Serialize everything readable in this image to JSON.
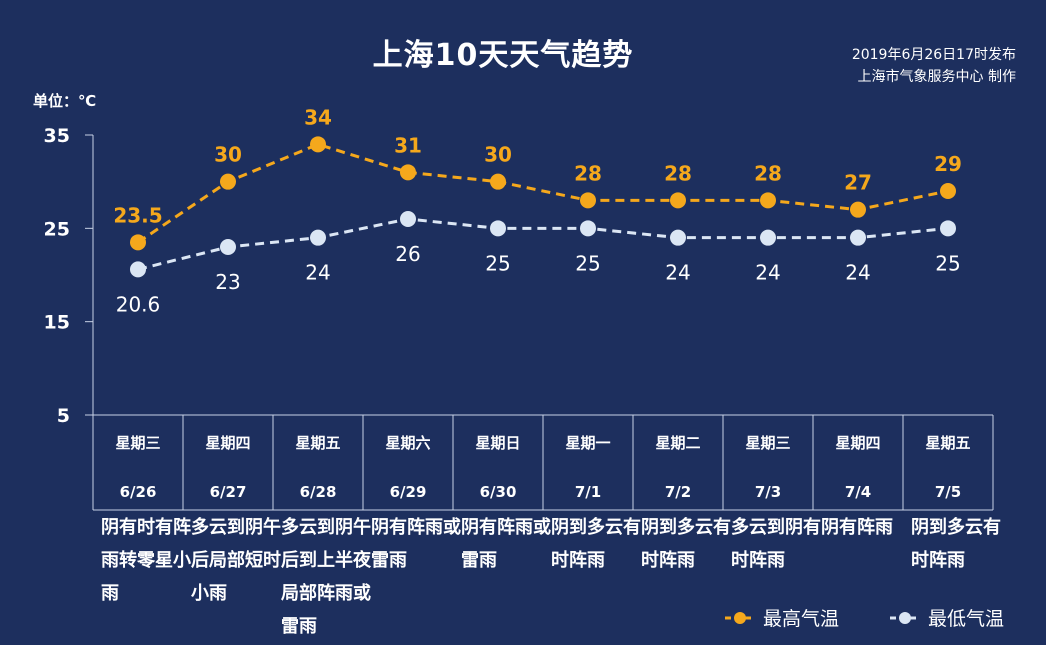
{
  "header": {
    "title": "上海10天天气趋势",
    "issued_time": "2019年6月26日17时发布",
    "issuer": "上海市气象服务中心  制作",
    "unit": "单位：℃"
  },
  "colors": {
    "background": "#1d2f5e",
    "high": "#f5a81c",
    "low": "#dbe6f4",
    "grid": "#c8d2e6"
  },
  "chart_data": {
    "type": "line",
    "title": "上海10天天气趋势",
    "ylabel": "单位：℃",
    "ylim": [
      5,
      35
    ],
    "yticks": [
      35,
      25,
      15,
      5
    ],
    "categories": [
      {
        "weekday": "星期三",
        "date": "6/26"
      },
      {
        "weekday": "星期四",
        "date": "6/27"
      },
      {
        "weekday": "星期五",
        "date": "6/28"
      },
      {
        "weekday": "星期六",
        "date": "6/29"
      },
      {
        "weekday": "星期日",
        "date": "6/30"
      },
      {
        "weekday": "星期一",
        "date": "7/1"
      },
      {
        "weekday": "星期二",
        "date": "7/2"
      },
      {
        "weekday": "星期三",
        "date": "7/3"
      },
      {
        "weekday": "星期四",
        "date": "7/4"
      },
      {
        "weekday": "星期五",
        "date": "7/5"
      }
    ],
    "series": [
      {
        "name": "最高气温",
        "labels": [
          "23.5",
          "30",
          "34",
          "31",
          "30",
          "28",
          "28",
          "28",
          "27",
          "29"
        ],
        "values": [
          23.5,
          30,
          34,
          31,
          30,
          28,
          28,
          28,
          27,
          29
        ]
      },
      {
        "name": "最低气温",
        "labels": [
          "20.6",
          "23",
          "24",
          "26",
          "25",
          "25",
          "24",
          "24",
          "24",
          "25"
        ],
        "values": [
          20.6,
          23,
          24,
          26,
          25,
          25,
          24,
          24,
          24,
          25
        ]
      }
    ]
  },
  "descriptions": [
    "阴有时有阵雨转零星小雨",
    "多云到阴午后局部短时小雨",
    "多云到阴午后到上半夜局部阵雨或雷雨",
    "阴有阵雨或雷雨",
    "阴有阵雨或雷雨",
    "阴到多云有时阵雨",
    "阴到多云有时阵雨",
    "多云到阴有时阵雨",
    "阴有阵雨",
    "阴到多云有时阵雨"
  ],
  "legend": {
    "high_label": "最高气温",
    "low_label": "最低气温"
  }
}
